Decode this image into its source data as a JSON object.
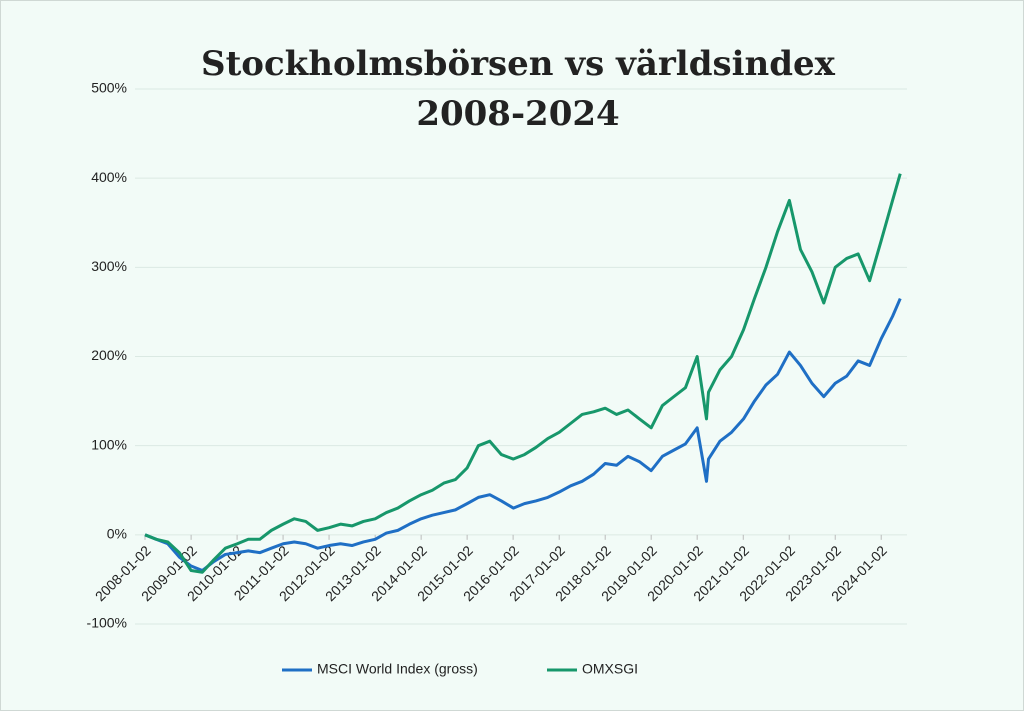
{
  "chart_data": {
    "type": "line",
    "title": [
      "Stockholmsbörsen vs världsindex",
      "2008-2024"
    ],
    "x": [
      "2008-01-02",
      "2008-04-01",
      "2008-07-01",
      "2008-10-01",
      "2009-01-02",
      "2009-04-01",
      "2009-07-01",
      "2009-10-01",
      "2010-01-04",
      "2010-04-01",
      "2010-07-01",
      "2010-10-01",
      "2011-01-03",
      "2011-04-01",
      "2011-07-01",
      "2011-10-03",
      "2012-01-02",
      "2012-04-02",
      "2012-07-02",
      "2012-10-01",
      "2013-01-02",
      "2013-04-01",
      "2013-07-01",
      "2013-10-01",
      "2014-01-02",
      "2014-04-01",
      "2014-07-01",
      "2014-10-01",
      "2015-01-02",
      "2015-04-01",
      "2015-07-01",
      "2015-10-01",
      "2016-01-04",
      "2016-04-01",
      "2016-07-01",
      "2016-10-03",
      "2017-01-02",
      "2017-04-03",
      "2017-07-03",
      "2017-10-02",
      "2018-01-02",
      "2018-04-02",
      "2018-07-02",
      "2018-10-01",
      "2019-01-02",
      "2019-04-01",
      "2019-07-01",
      "2019-10-01",
      "2020-01-02",
      "2020-03-16",
      "2020-04-01",
      "2020-07-01",
      "2020-10-01",
      "2021-01-04",
      "2021-04-01",
      "2021-07-01",
      "2021-10-01",
      "2022-01-03",
      "2022-04-01",
      "2022-07-01",
      "2022-10-03",
      "2023-01-02",
      "2023-04-03",
      "2023-07-03",
      "2023-10-02",
      "2024-01-02",
      "2024-04-01",
      "2024-06-01"
    ],
    "series": [
      {
        "name": "MSCI World Index (gross)",
        "color": "#1f6fc5",
        "values": [
          0,
          -5,
          -10,
          -25,
          -35,
          -40,
          -30,
          -22,
          -20,
          -18,
          -20,
          -15,
          -10,
          -8,
          -10,
          -15,
          -12,
          -10,
          -12,
          -8,
          -5,
          2,
          5,
          12,
          18,
          22,
          25,
          28,
          35,
          42,
          45,
          38,
          30,
          35,
          38,
          42,
          48,
          55,
          60,
          68,
          80,
          78,
          88,
          82,
          72,
          88,
          95,
          102,
          120,
          60,
          85,
          105,
          115,
          130,
          150,
          168,
          180,
          205,
          190,
          170,
          155,
          170,
          178,
          195,
          190,
          220,
          245,
          265
        ]
      },
      {
        "name": "OMXSGI",
        "color": "#17976b",
        "values": [
          0,
          -5,
          -8,
          -20,
          -40,
          -42,
          -28,
          -15,
          -10,
          -5,
          -5,
          5,
          12,
          18,
          15,
          5,
          8,
          12,
          10,
          15,
          18,
          25,
          30,
          38,
          45,
          50,
          58,
          62,
          75,
          100,
          105,
          90,
          85,
          90,
          98,
          108,
          115,
          125,
          135,
          138,
          142,
          135,
          140,
          130,
          120,
          145,
          155,
          165,
          200,
          130,
          160,
          185,
          200,
          230,
          265,
          300,
          340,
          375,
          320,
          295,
          260,
          300,
          310,
          315,
          285,
          330,
          375,
          405
        ]
      }
    ],
    "xlim": [
      "2008-01-02",
      "2024-06-15"
    ],
    "xticks": [
      "2008-01-02",
      "2009-01-02",
      "2010-01-02",
      "2011-01-02",
      "2012-01-02",
      "2013-01-02",
      "2014-01-02",
      "2015-01-02",
      "2016-01-02",
      "2017-01-02",
      "2018-01-02",
      "2019-01-02",
      "2020-01-02",
      "2021-01-02",
      "2022-01-02",
      "2023-01-02",
      "2024-01-02"
    ],
    "ylim": [
      -100,
      500
    ],
    "yticks": [
      {
        "value": -100,
        "label": "-100%"
      },
      {
        "value": 0,
        "label": "0%"
      },
      {
        "value": 100,
        "label": "100%"
      },
      {
        "value": 200,
        "label": "200%"
      },
      {
        "value": 300,
        "label": "300%"
      },
      {
        "value": 400,
        "label": "400%"
      },
      {
        "value": 500,
        "label": "500%"
      }
    ],
    "grid": true,
    "legend": "bottom"
  }
}
